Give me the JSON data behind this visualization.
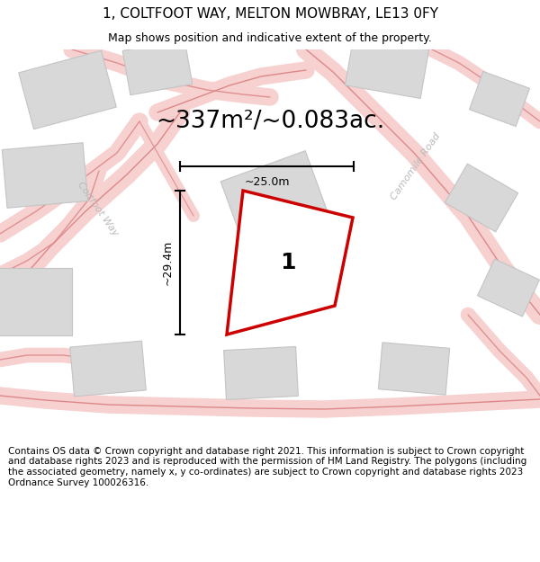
{
  "title_line1": "1, COLTFOOT WAY, MELTON MOWBRAY, LE13 0FY",
  "title_line2": "Map shows position and indicative extent of the property.",
  "area_text": "~337m²/~0.083ac.",
  "dim_h": "~25.0m",
  "dim_v": "~29.4m",
  "label_num": "1",
  "footer": "Contains OS data © Crown copyright and database right 2021. This information is subject to Crown copyright and database rights 2023 and is reproduced with the permission of HM Land Registry. The polygons (including the associated geometry, namely x, y co-ordinates) are subject to Crown copyright and database rights 2023 Ordnance Survey 100026316.",
  "bg_color": "#ffffff",
  "road_fill": "#f7d0d0",
  "road_line": "#e89898",
  "building_fill": "#d8d8d8",
  "building_edge": "#c4c4c4",
  "plot_edge": "#cc0000",
  "dim_color": "#000000",
  "road_label_color": "#bbbbbb",
  "title_fs": 11,
  "subtitle_fs": 9,
  "area_fs": 19,
  "footer_fs": 7.5,
  "label_fs": 18,
  "dim_fs": 9,
  "road_label_fs": 8
}
